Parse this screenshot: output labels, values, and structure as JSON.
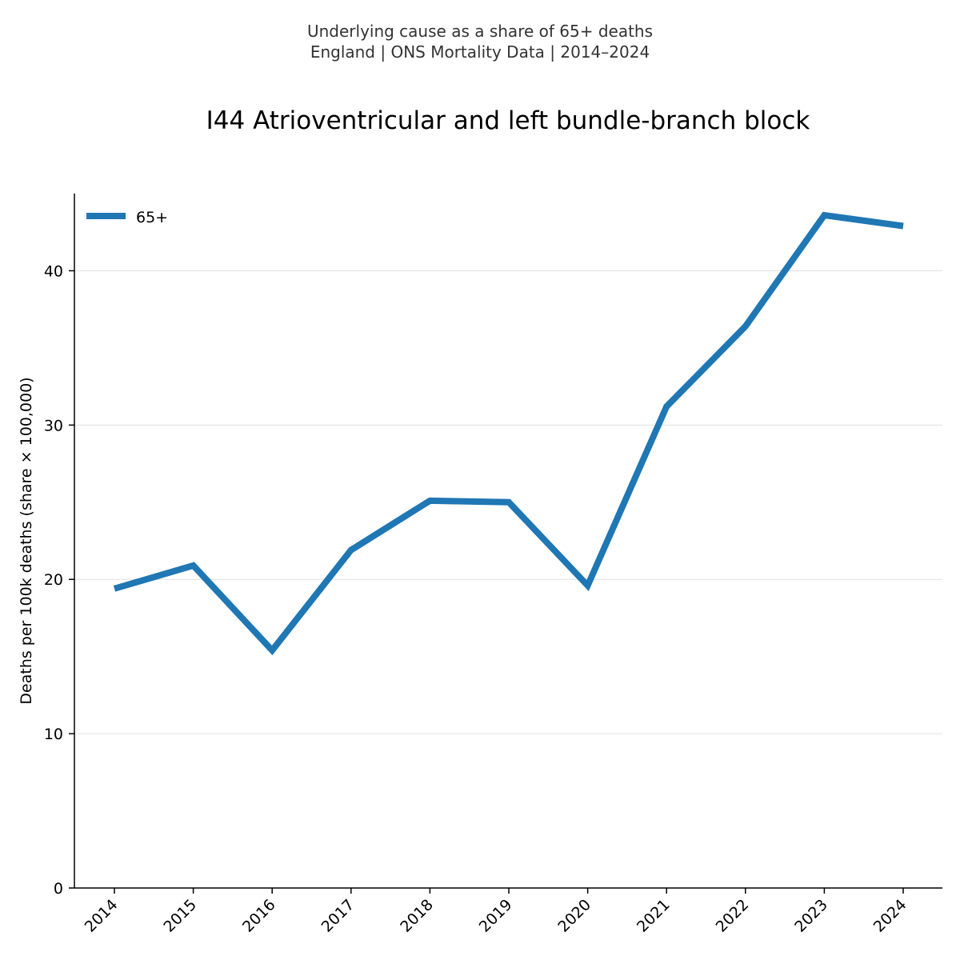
{
  "header": {
    "subtitle_line1": "Underlying cause as a share of 65+ deaths",
    "subtitle_line2": "England | ONS Mortality Data | 2014–2024"
  },
  "chart_data": {
    "type": "line",
    "title": "I44 Atrioventricular and left bundle-branch block",
    "xlabel": "",
    "ylabel": "Deaths per 100k deaths (share × 100,000)",
    "categories": [
      "2014",
      "2015",
      "2016",
      "2017",
      "2018",
      "2019",
      "2020",
      "2021",
      "2022",
      "2023",
      "2024"
    ],
    "series": [
      {
        "name": "65+",
        "color": "#1f77b4",
        "values": [
          19.4,
          20.9,
          15.4,
          21.9,
          25.1,
          25.0,
          19.6,
          31.2,
          36.4,
          43.6,
          42.9
        ]
      }
    ],
    "ylim": [
      0,
      45
    ],
    "yticks": [
      0,
      10,
      20,
      30,
      40
    ],
    "grid": "horizontal",
    "legend_position": "top-left"
  }
}
